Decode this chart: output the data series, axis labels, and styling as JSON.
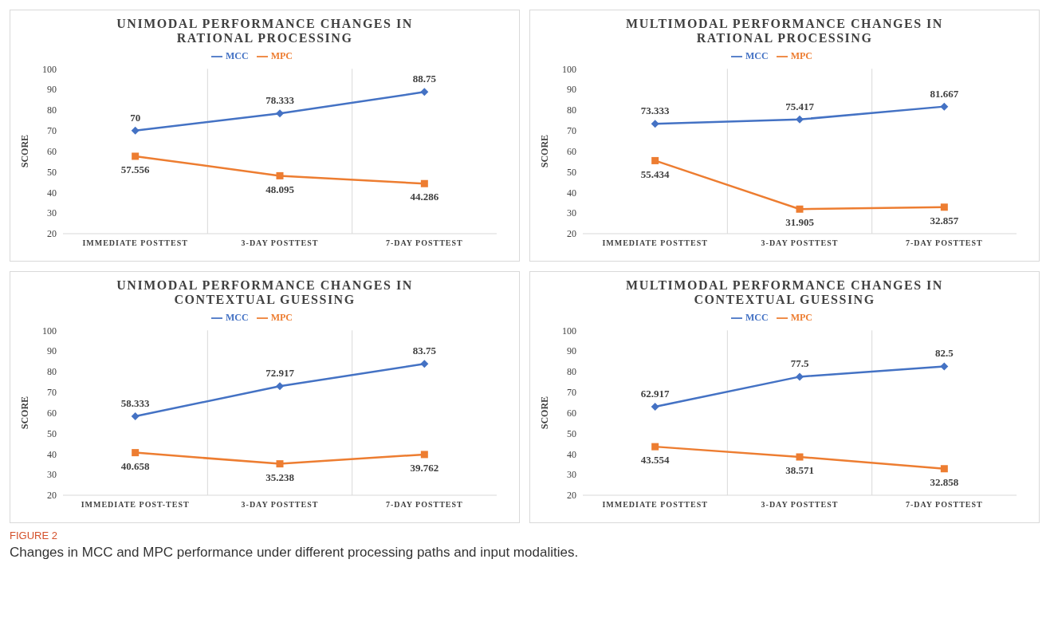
{
  "chart_data": [
    {
      "type": "line",
      "title": "UNIMODAL PERFORMANCE CHANGES IN RATIONAL PROCESSING",
      "ylabel": "SCORE",
      "categories": [
        "IMMEDIATE POSTTEST",
        "3-DAY POSTTEST",
        "7-DAY POSTTEST"
      ],
      "ylim": [
        20,
        100
      ],
      "yticks": [
        20,
        30,
        40,
        50,
        60,
        70,
        80,
        90,
        100
      ],
      "legend": "top",
      "data_labels": true,
      "series": [
        {
          "name": "MCC",
          "color": "#4472c4",
          "marker": "diamond",
          "values": [
            70,
            78.333,
            88.75
          ]
        },
        {
          "name": "MPC",
          "color": "#ed7d31",
          "marker": "square",
          "values": [
            57.556,
            48.095,
            44.286
          ]
        }
      ]
    },
    {
      "type": "line",
      "title": "MULTIMODAL PERFORMANCE CHANGES IN RATIONAL PROCESSING",
      "ylabel": "SCORE",
      "categories": [
        "IMMEDIATE POSTTEST",
        "3-DAY POSTTEST",
        "7-DAY POSTTEST"
      ],
      "ylim": [
        20,
        100
      ],
      "yticks": [
        20,
        30,
        40,
        50,
        60,
        70,
        80,
        90,
        100
      ],
      "legend": "top",
      "data_labels": true,
      "series": [
        {
          "name": "MCC",
          "color": "#4472c4",
          "marker": "diamond",
          "values": [
            73.333,
            75.417,
            81.667
          ]
        },
        {
          "name": "MPC",
          "color": "#ed7d31",
          "marker": "square",
          "values": [
            55.434,
            31.905,
            32.857
          ]
        }
      ]
    },
    {
      "type": "line",
      "title": "UNIMODAL PERFORMANCE CHANGES IN CONTEXTUAL GUESSING",
      "ylabel": "SCORE",
      "categories": [
        "IMMEDIATE POST-TEST",
        "3-DAY POSTTEST",
        "7-DAY POSTTEST"
      ],
      "ylim": [
        20,
        100
      ],
      "yticks": [
        20,
        30,
        40,
        50,
        60,
        70,
        80,
        90,
        100
      ],
      "legend": "top",
      "data_labels": true,
      "series": [
        {
          "name": "MCC",
          "color": "#4472c4",
          "marker": "diamond",
          "values": [
            58.333,
            72.917,
            83.75
          ]
        },
        {
          "name": "MPC",
          "color": "#ed7d31",
          "marker": "square",
          "values": [
            40.658,
            35.238,
            39.762
          ]
        }
      ]
    },
    {
      "type": "line",
      "title": "MULTIMODAL PERFORMANCE CHANGES IN CONTEXTUAL GUESSING",
      "ylabel": "SCORE",
      "categories": [
        "IMMEDIATE POSTTEST",
        "3-DAY POSTTEST",
        "7-DAY POSTTEST"
      ],
      "ylim": [
        20,
        100
      ],
      "yticks": [
        20,
        30,
        40,
        50,
        60,
        70,
        80,
        90,
        100
      ],
      "legend": "top",
      "data_labels": true,
      "series": [
        {
          "name": "MCC",
          "color": "#4472c4",
          "marker": "diamond",
          "values": [
            62.917,
            77.5,
            82.5
          ]
        },
        {
          "name": "MPC",
          "color": "#ed7d31",
          "marker": "square",
          "values": [
            43.554,
            38.571,
            32.858
          ]
        }
      ]
    },
    {
      "type": "other",
      "annotations": [
        "FIGURE 2",
        "Changes in MCC and MPC performance under different processing paths and input modalities."
      ]
    }
  ]
}
